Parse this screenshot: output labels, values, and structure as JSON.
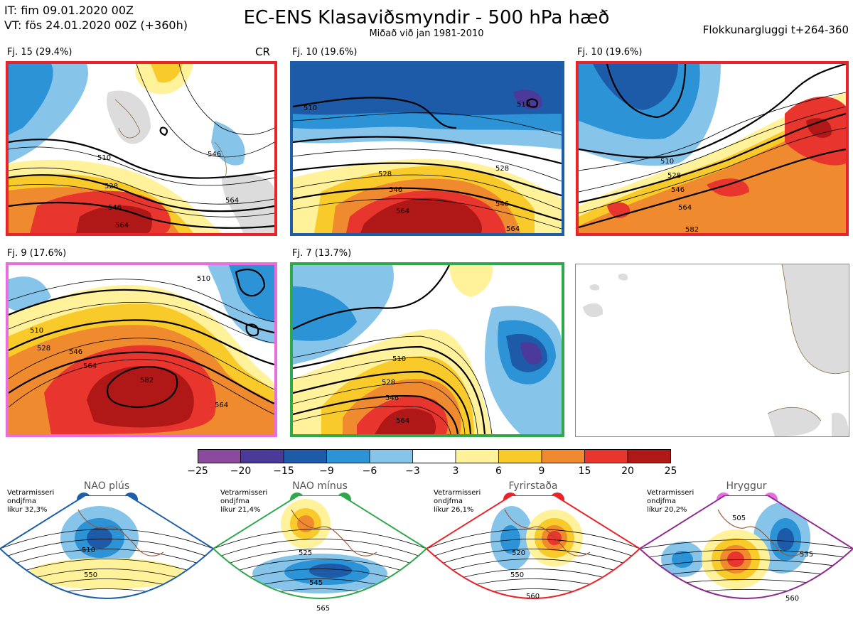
{
  "header": {
    "it_line": "IT: fim 09.01.2020 00Z",
    "vt_line": "VT: fös 24.01.2020 00Z  (+360h)",
    "title": "EC-ENS Klasaviðsmyndir - 500 hPa hæð",
    "subtitle": "Miðað við jan 1981-2010",
    "cluster_window": "Flokkunargluggi t+264-360"
  },
  "panels": [
    {
      "label": "Fj. 15 (29.4%)",
      "border_color": "#e8242a",
      "tag": "CR",
      "contours": [
        "510",
        "528",
        "546",
        "564",
        "546",
        "564"
      ]
    },
    {
      "label": "Fj. 10 (19.6%)",
      "border_color": "#1c5ea8",
      "contours": [
        "510",
        "510",
        "528",
        "546",
        "564",
        "528",
        "546",
        "564"
      ]
    },
    {
      "label": "Fj. 10 (19.6%)",
      "border_color": "#e8242a",
      "contours": [
        "510",
        "528",
        "546",
        "564",
        "582"
      ]
    },
    {
      "label": "Fj. 9 (17.6%)",
      "border_color": "#e86ee0",
      "contours": [
        "510",
        "528",
        "546",
        "564",
        "582",
        "510",
        "564"
      ]
    },
    {
      "label": "Fj. 7 (13.7%)",
      "border_color": "#2ea84a",
      "contours": [
        "510",
        "528",
        "546",
        "564"
      ]
    }
  ],
  "colorbar": {
    "ticks": [
      "−25",
      "−20",
      "−15",
      "−9",
      "−6",
      "−3",
      "3",
      "6",
      "9",
      "15",
      "20",
      "25"
    ],
    "colors": [
      "#8c4a9e",
      "#4b3a9a",
      "#1d5aa8",
      "#2b93d6",
      "#86c4ea",
      "#ffffff",
      "#fff29a",
      "#f8ca2a",
      "#f08a2e",
      "#e8352e",
      "#b01818"
    ]
  },
  "regimes": [
    {
      "name": "NAO plús",
      "meta_1": "Vetrarmisseri",
      "meta_2": "ondjfma",
      "meta_3": "líkur 32,3%",
      "frame_color": "#1c5ea8",
      "dot_color": "#1c5ea8",
      "labels": [
        "510",
        "550"
      ]
    },
    {
      "name": "NAO mínus",
      "meta_1": "Vetrarmisseri",
      "meta_2": "ondjfma",
      "meta_3": "líkur 21,4%",
      "frame_color": "#2ea84a",
      "dot_color": "#2ea84a",
      "labels": [
        "525",
        "545",
        "565"
      ]
    },
    {
      "name": "Fyrirstaða",
      "meta_1": "Vetrarmisseri",
      "meta_2": "ondjfma",
      "meta_3": "líkur 26,1%",
      "frame_color": "#e8242a",
      "dot_color": "#e8242a",
      "labels": [
        "520",
        "550",
        "560"
      ]
    },
    {
      "name": "Hryggur",
      "meta_1": "Vetrarmisseri",
      "meta_2": "ondjfma",
      "meta_3": "líkur 20,2%",
      "frame_color": "#8e2a90",
      "dot_color": "#e86ee0",
      "labels": [
        "505",
        "535",
        "560"
      ]
    }
  ]
}
